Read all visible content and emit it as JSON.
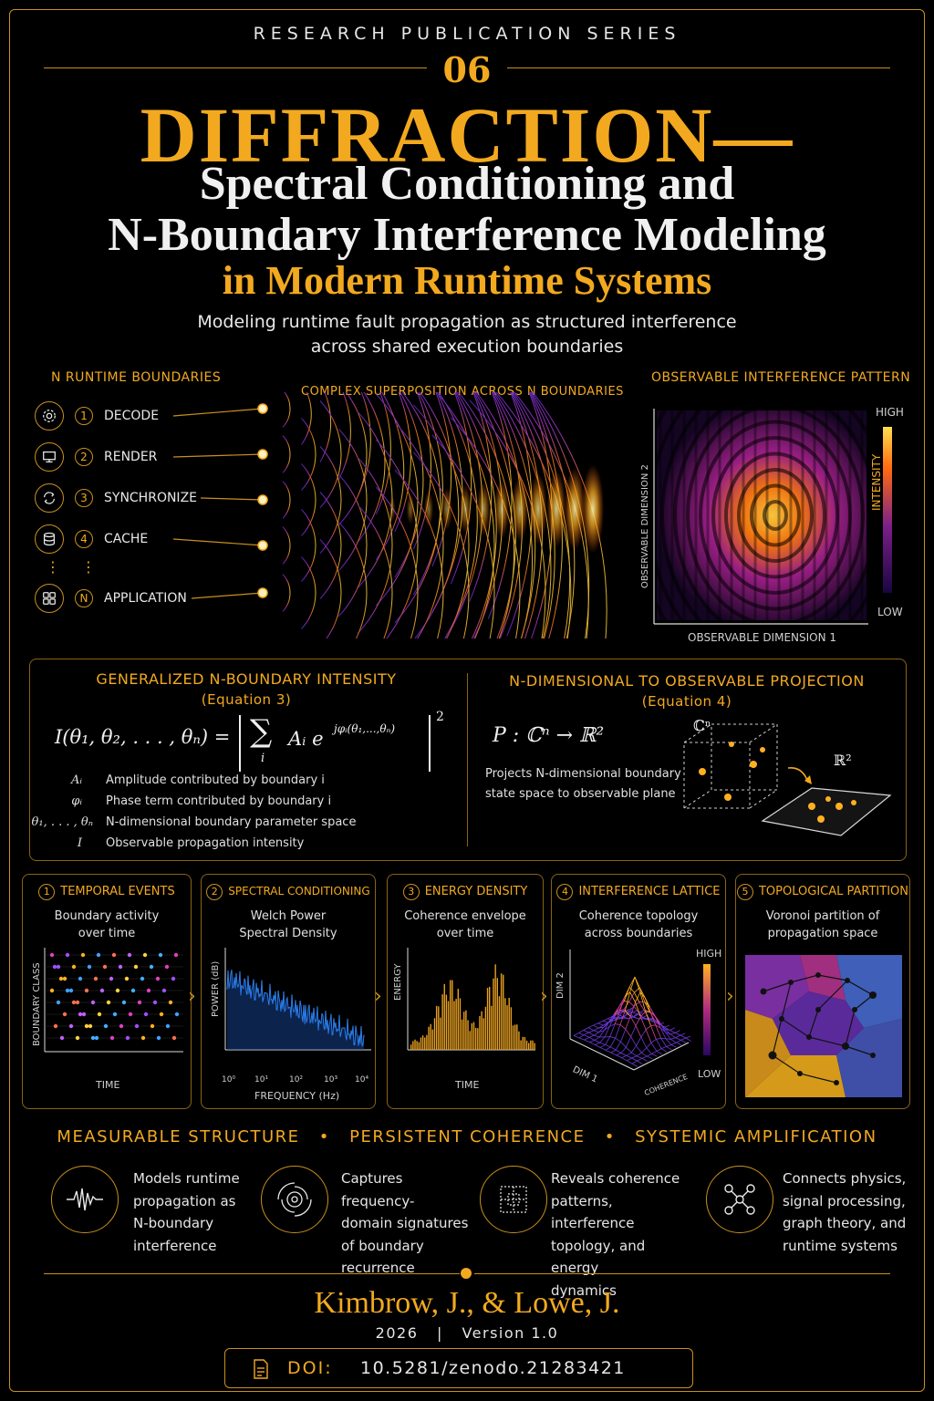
{
  "header": {
    "series": "RESEARCH PUBLICATION SERIES",
    "issue": "06",
    "title_line1": "DIFFRACTION—",
    "title_line2": "Spectral Conditioning and",
    "title_line3": "N-Boundary Interference Modeling",
    "title_line4": "in Modern Runtime Systems",
    "subtitle_line1": "Modeling runtime fault propagation as structured interference",
    "subtitle_line2": "across shared execution boundaries"
  },
  "boundaries": {
    "label": "N RUNTIME BOUNDARIES",
    "items": [
      {
        "num": "1",
        "name": "DECODE",
        "icon": "gear-icon"
      },
      {
        "num": "2",
        "name": "RENDER",
        "icon": "monitor-icon"
      },
      {
        "num": "3",
        "name": "SYNCHRONIZE",
        "icon": "sync-icon"
      },
      {
        "num": "4",
        "name": "CACHE",
        "icon": "database-icon"
      },
      {
        "num": "N",
        "name": "APPLICATION",
        "icon": "grid-icon"
      }
    ],
    "ellipsis": "⋮"
  },
  "superposition": {
    "label": "COMPLEX SUPERPOSITION ACROSS N BOUNDARIES"
  },
  "pattern": {
    "label": "OBSERVABLE INTERFERENCE PATTERN",
    "xlabel": "OBSERVABLE DIMENSION 1",
    "ylabel": "OBSERVABLE DIMENSION 2",
    "scale_high": "HIGH",
    "scale_low": "LOW",
    "scale_label": "INTENSITY"
  },
  "equation3": {
    "title": "GENERALIZED N-BOUNDARY INTENSITY",
    "subtitle": "(Equation 3)",
    "lhs": "I(θ₁, θ₂, . . . , θₙ) =",
    "sum": "∑",
    "sum_index": "i",
    "term": "Aᵢ e",
    "exponent": "jφᵢ(θ₁,...,θₙ)",
    "power": "2",
    "defs": [
      {
        "sym": "Aᵢ",
        "def": "Amplitude contributed by boundary i"
      },
      {
        "sym": "φᵢ",
        "def": "Phase term contributed by boundary i"
      },
      {
        "sym": "θ₁, . . . , θₙ",
        "def": "N-dimensional boundary parameter space"
      },
      {
        "sym": "I",
        "def": "Observable propagation intensity"
      }
    ]
  },
  "equation4": {
    "title": "N-DIMENSIONAL TO OBSERVABLE PROJECTION",
    "subtitle": "(Equation 4)",
    "formula": "P : ℂⁿ → ℝ²",
    "desc_line1": "Projects N-dimensional boundary",
    "desc_line2": "state space to observable plane",
    "cube_label": "ℂⁿ",
    "plane_label": "ℝ²"
  },
  "panels": [
    {
      "num": "1",
      "title": "TEMPORAL EVENTS",
      "desc1": "Boundary activity",
      "desc2": "over time",
      "xlabel": "TIME",
      "ylabel": "BOUNDARY CLASS"
    },
    {
      "num": "2",
      "title": "SPECTRAL CONDITIONING",
      "desc1": "Welch Power",
      "desc2": "Spectral Density",
      "xlabel": "FREQUENCY (Hz)",
      "ylabel": "POWER (dB)",
      "ticks": [
        "10⁰",
        "10¹",
        "10²",
        "10³",
        "10⁴"
      ]
    },
    {
      "num": "3",
      "title": "ENERGY DENSITY",
      "desc1": "Coherence envelope",
      "desc2": "over time",
      "xlabel": "TIME",
      "ylabel": "ENERGY"
    },
    {
      "num": "4",
      "title": "INTERFERENCE LATTICE",
      "desc1": "Coherence topology",
      "desc2": "across boundaries",
      "xlabel": "DIM 1",
      "ylabel": "DIM 2",
      "zlabel": "COHERENCE",
      "scale_high": "HIGH",
      "scale_low": "LOW"
    },
    {
      "num": "5",
      "title": "TOPOLOGICAL PARTITION",
      "desc1": "Voronoi partition of",
      "desc2": "propagation space"
    }
  ],
  "pillars": {
    "a": "MEASURABLE STRUCTURE",
    "b": "PERSISTENT COHERENCE",
    "c": "SYSTEMIC AMPLIFICATION",
    "sep": "•"
  },
  "features": [
    {
      "icon": "waveform-icon",
      "lines": [
        "Models runtime",
        "propagation as",
        "N-boundary",
        "interference"
      ]
    },
    {
      "icon": "rings-icon",
      "lines": [
        "Captures frequency-",
        "domain signatures",
        "of boundary",
        "recurrence"
      ]
    },
    {
      "icon": "lattice-icon",
      "lines": [
        "Reveals coherence",
        "patterns, interference",
        "topology, and energy",
        "dynamics"
      ]
    },
    {
      "icon": "network-icon",
      "lines": [
        "Connects physics,",
        "signal processing,",
        "graph theory, and",
        "runtime systems"
      ]
    }
  ],
  "footer": {
    "authors": "Kimbrow, J., & Lowe, J.",
    "year": "2026",
    "sep": "|",
    "version": "Version 1.0",
    "doi_label": "DOI:",
    "doi_value": "10.5281/zenodo.21283421"
  },
  "colors": {
    "accent": "#f2a91f",
    "border": "#c8901e",
    "bg": "#000000",
    "violet": "#7a3cff",
    "blue": "#2f7bff"
  }
}
